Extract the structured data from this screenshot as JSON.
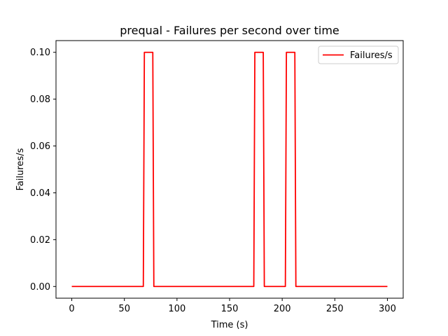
{
  "chart_data": {
    "type": "line",
    "title": "prequal - Failures per second over time",
    "xlabel": "Time (s)",
    "ylabel": "Failures/s",
    "xlim": [
      -15,
      315
    ],
    "ylim": [
      -0.005,
      0.105
    ],
    "xticks": [
      0,
      50,
      100,
      150,
      200,
      250,
      300
    ],
    "yticks": [
      0.0,
      0.02,
      0.04,
      0.06,
      0.08,
      0.1
    ],
    "ytick_labels": [
      "0.00",
      "0.02",
      "0.04",
      "0.06",
      "0.08",
      "0.10"
    ],
    "grid": false,
    "legend_position": "top-right",
    "series": [
      {
        "name": "Failures/s",
        "color": "#ff0000",
        "x": [
          0,
          68,
          69,
          77,
          78,
          173,
          174,
          182,
          183,
          203,
          204,
          212,
          213,
          300
        ],
        "y": [
          0,
          0,
          0.1,
          0.1,
          0,
          0,
          0.1,
          0.1,
          0,
          0,
          0.1,
          0.1,
          0,
          0
        ]
      }
    ]
  }
}
